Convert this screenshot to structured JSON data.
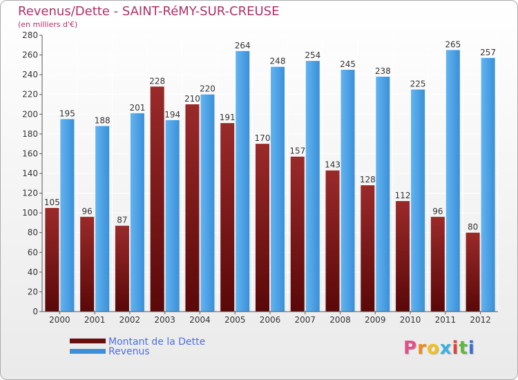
{
  "title": "Revenus/Dette - SAINT-RéMY-SUR-CREUSE",
  "subtitle": "(en milliers d'€)",
  "chart_data": {
    "type": "bar",
    "categories": [
      "2000",
      "2001",
      "2002",
      "2003",
      "2004",
      "2005",
      "2006",
      "2007",
      "2008",
      "2009",
      "2010",
      "2011",
      "2012"
    ],
    "series": [
      {
        "name": "Montant de la Dette",
        "color": "#8b1a1a",
        "values": [
          105,
          96,
          87,
          228,
          210,
          191,
          170,
          157,
          143,
          128,
          112,
          96,
          80
        ]
      },
      {
        "name": "Revenus",
        "color": "#3a8fd8",
        "values": [
          195,
          188,
          201,
          194,
          220,
          264,
          248,
          254,
          245,
          238,
          225,
          265,
          257
        ]
      }
    ],
    "ylim": [
      0,
      280
    ],
    "yticks": [
      0,
      20,
      40,
      60,
      80,
      100,
      120,
      140,
      160,
      180,
      200,
      220,
      240,
      260,
      280
    ],
    "grid": true,
    "legend_position": "bottom-left"
  },
  "legend": {
    "debt_label": "Montant de la Dette",
    "revenue_label": "Revenus"
  },
  "logo": {
    "text": "Proxiti",
    "letter_colors": [
      "#e0508a",
      "#f08a20",
      "#f0c020",
      "#3ab0e0",
      "#e04040",
      "#60b840",
      "#3a70d0"
    ]
  }
}
